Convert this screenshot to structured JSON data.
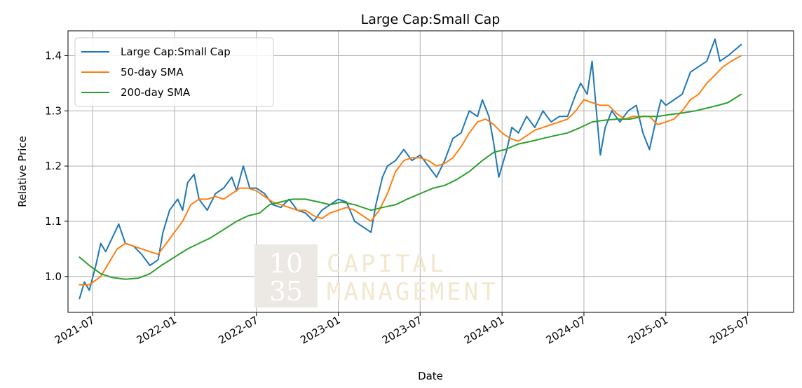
{
  "chart_data": {
    "type": "line",
    "title": "Large Cap:Small Cap",
    "xlabel": "Date",
    "ylabel": "Relative Price",
    "ylim": [
      0.935,
      1.445
    ],
    "xlim_years": [
      2021.35,
      2025.78
    ],
    "grid": true,
    "legend_position": "top-left",
    "x_ticks": [
      {
        "label": "2021-07",
        "value": 2021.5
      },
      {
        "label": "2022-01",
        "value": 2022.0
      },
      {
        "label": "2022-07",
        "value": 2022.5
      },
      {
        "label": "2023-01",
        "value": 2023.0
      },
      {
        "label": "2023-07",
        "value": 2023.5
      },
      {
        "label": "2024-01",
        "value": 2024.0
      },
      {
        "label": "2024-07",
        "value": 2024.5
      },
      {
        "label": "2025-01",
        "value": 2025.0
      },
      {
        "label": "2025-07",
        "value": 2025.5
      }
    ],
    "y_ticks": [
      {
        "label": "1.0",
        "value": 1.0
      },
      {
        "label": "1.1",
        "value": 1.1
      },
      {
        "label": "1.2",
        "value": 1.2
      },
      {
        "label": "1.3",
        "value": 1.3
      },
      {
        "label": "1.4",
        "value": 1.4
      }
    ],
    "series": [
      {
        "name": "Large Cap:Small Cap",
        "color": "#1f77b4",
        "points": [
          [
            2021.42,
            0.96
          ],
          [
            2021.45,
            0.99
          ],
          [
            2021.48,
            0.975
          ],
          [
            2021.52,
            1.02
          ],
          [
            2021.55,
            1.06
          ],
          [
            2021.58,
            1.045
          ],
          [
            2021.62,
            1.07
          ],
          [
            2021.66,
            1.095
          ],
          [
            2021.7,
            1.06
          ],
          [
            2021.75,
            1.055
          ],
          [
            2021.8,
            1.04
          ],
          [
            2021.85,
            1.02
          ],
          [
            2021.9,
            1.03
          ],
          [
            2021.93,
            1.08
          ],
          [
            2021.97,
            1.12
          ],
          [
            2022.02,
            1.14
          ],
          [
            2022.05,
            1.12
          ],
          [
            2022.08,
            1.17
          ],
          [
            2022.12,
            1.185
          ],
          [
            2022.15,
            1.14
          ],
          [
            2022.2,
            1.12
          ],
          [
            2022.25,
            1.15
          ],
          [
            2022.3,
            1.16
          ],
          [
            2022.35,
            1.18
          ],
          [
            2022.38,
            1.155
          ],
          [
            2022.42,
            1.2
          ],
          [
            2022.46,
            1.16
          ],
          [
            2022.5,
            1.16
          ],
          [
            2022.55,
            1.15
          ],
          [
            2022.6,
            1.13
          ],
          [
            2022.65,
            1.125
          ],
          [
            2022.7,
            1.14
          ],
          [
            2022.75,
            1.12
          ],
          [
            2022.8,
            1.115
          ],
          [
            2022.85,
            1.1
          ],
          [
            2022.9,
            1.12
          ],
          [
            2022.95,
            1.13
          ],
          [
            2023.0,
            1.14
          ],
          [
            2023.05,
            1.135
          ],
          [
            2023.1,
            1.1
          ],
          [
            2023.15,
            1.09
          ],
          [
            2023.2,
            1.08
          ],
          [
            2023.23,
            1.13
          ],
          [
            2023.27,
            1.18
          ],
          [
            2023.3,
            1.2
          ],
          [
            2023.35,
            1.21
          ],
          [
            2023.4,
            1.23
          ],
          [
            2023.45,
            1.21
          ],
          [
            2023.5,
            1.22
          ],
          [
            2023.55,
            1.2
          ],
          [
            2023.6,
            1.18
          ],
          [
            2023.65,
            1.21
          ],
          [
            2023.7,
            1.25
          ],
          [
            2023.75,
            1.26
          ],
          [
            2023.8,
            1.3
          ],
          [
            2023.85,
            1.29
          ],
          [
            2023.88,
            1.32
          ],
          [
            2023.92,
            1.29
          ],
          [
            2023.95,
            1.24
          ],
          [
            2023.98,
            1.18
          ],
          [
            2024.0,
            1.2
          ],
          [
            2024.03,
            1.23
          ],
          [
            2024.06,
            1.27
          ],
          [
            2024.1,
            1.26
          ],
          [
            2024.15,
            1.29
          ],
          [
            2024.2,
            1.27
          ],
          [
            2024.25,
            1.3
          ],
          [
            2024.3,
            1.28
          ],
          [
            2024.35,
            1.29
          ],
          [
            2024.4,
            1.29
          ],
          [
            2024.45,
            1.33
          ],
          [
            2024.48,
            1.35
          ],
          [
            2024.52,
            1.33
          ],
          [
            2024.55,
            1.39
          ],
          [
            2024.57,
            1.32
          ],
          [
            2024.6,
            1.22
          ],
          [
            2024.63,
            1.27
          ],
          [
            2024.67,
            1.3
          ],
          [
            2024.72,
            1.28
          ],
          [
            2024.77,
            1.3
          ],
          [
            2024.82,
            1.31
          ],
          [
            2024.86,
            1.26
          ],
          [
            2024.9,
            1.23
          ],
          [
            2024.93,
            1.27
          ],
          [
            2024.97,
            1.32
          ],
          [
            2025.0,
            1.31
          ],
          [
            2025.05,
            1.32
          ],
          [
            2025.1,
            1.33
          ],
          [
            2025.15,
            1.37
          ],
          [
            2025.2,
            1.38
          ],
          [
            2025.25,
            1.39
          ],
          [
            2025.3,
            1.43
          ],
          [
            2025.33,
            1.39
          ],
          [
            2025.38,
            1.4
          ],
          [
            2025.42,
            1.41
          ],
          [
            2025.46,
            1.42
          ]
        ]
      },
      {
        "name": "50-day SMA",
        "color": "#ff7f0e",
        "points": [
          [
            2021.42,
            0.985
          ],
          [
            2021.48,
            0.985
          ],
          [
            2021.55,
            1.0
          ],
          [
            2021.6,
            1.025
          ],
          [
            2021.65,
            1.05
          ],
          [
            2021.7,
            1.06
          ],
          [
            2021.75,
            1.055
          ],
          [
            2021.8,
            1.05
          ],
          [
            2021.85,
            1.045
          ],
          [
            2021.9,
            1.04
          ],
          [
            2021.95,
            1.06
          ],
          [
            2022.0,
            1.08
          ],
          [
            2022.05,
            1.1
          ],
          [
            2022.1,
            1.13
          ],
          [
            2022.15,
            1.14
          ],
          [
            2022.2,
            1.14
          ],
          [
            2022.25,
            1.145
          ],
          [
            2022.3,
            1.14
          ],
          [
            2022.35,
            1.15
          ],
          [
            2022.4,
            1.16
          ],
          [
            2022.45,
            1.16
          ],
          [
            2022.5,
            1.155
          ],
          [
            2022.55,
            1.145
          ],
          [
            2022.6,
            1.135
          ],
          [
            2022.65,
            1.13
          ],
          [
            2022.7,
            1.125
          ],
          [
            2022.75,
            1.12
          ],
          [
            2022.8,
            1.12
          ],
          [
            2022.85,
            1.11
          ],
          [
            2022.9,
            1.105
          ],
          [
            2022.95,
            1.115
          ],
          [
            2023.0,
            1.12
          ],
          [
            2023.05,
            1.125
          ],
          [
            2023.1,
            1.12
          ],
          [
            2023.15,
            1.11
          ],
          [
            2023.2,
            1.1
          ],
          [
            2023.25,
            1.12
          ],
          [
            2023.3,
            1.15
          ],
          [
            2023.35,
            1.19
          ],
          [
            2023.4,
            1.21
          ],
          [
            2023.45,
            1.215
          ],
          [
            2023.5,
            1.215
          ],
          [
            2023.55,
            1.21
          ],
          [
            2023.6,
            1.2
          ],
          [
            2023.65,
            1.205
          ],
          [
            2023.7,
            1.215
          ],
          [
            2023.75,
            1.235
          ],
          [
            2023.8,
            1.26
          ],
          [
            2023.85,
            1.28
          ],
          [
            2023.9,
            1.285
          ],
          [
            2023.95,
            1.275
          ],
          [
            2024.0,
            1.26
          ],
          [
            2024.05,
            1.25
          ],
          [
            2024.1,
            1.245
          ],
          [
            2024.15,
            1.255
          ],
          [
            2024.2,
            1.265
          ],
          [
            2024.25,
            1.27
          ],
          [
            2024.3,
            1.275
          ],
          [
            2024.35,
            1.28
          ],
          [
            2024.4,
            1.285
          ],
          [
            2024.45,
            1.3
          ],
          [
            2024.5,
            1.32
          ],
          [
            2024.55,
            1.315
          ],
          [
            2024.6,
            1.31
          ],
          [
            2024.65,
            1.31
          ],
          [
            2024.7,
            1.295
          ],
          [
            2024.75,
            1.285
          ],
          [
            2024.8,
            1.29
          ],
          [
            2024.85,
            1.29
          ],
          [
            2024.9,
            1.29
          ],
          [
            2024.95,
            1.275
          ],
          [
            2025.0,
            1.28
          ],
          [
            2025.05,
            1.285
          ],
          [
            2025.1,
            1.3
          ],
          [
            2025.15,
            1.32
          ],
          [
            2025.2,
            1.33
          ],
          [
            2025.25,
            1.35
          ],
          [
            2025.3,
            1.365
          ],
          [
            2025.35,
            1.38
          ],
          [
            2025.4,
            1.39
          ],
          [
            2025.46,
            1.4
          ]
        ]
      },
      {
        "name": "200-day SMA",
        "color": "#2ca02c",
        "points": [
          [
            2021.42,
            1.035
          ],
          [
            2021.48,
            1.02
          ],
          [
            2021.55,
            1.005
          ],
          [
            2021.62,
            0.998
          ],
          [
            2021.7,
            0.995
          ],
          [
            2021.78,
            0.997
          ],
          [
            2021.85,
            1.005
          ],
          [
            2021.92,
            1.02
          ],
          [
            2022.0,
            1.035
          ],
          [
            2022.08,
            1.05
          ],
          [
            2022.15,
            1.06
          ],
          [
            2022.22,
            1.07
          ],
          [
            2022.3,
            1.085
          ],
          [
            2022.38,
            1.1
          ],
          [
            2022.45,
            1.11
          ],
          [
            2022.52,
            1.115
          ],
          [
            2022.58,
            1.13
          ],
          [
            2022.65,
            1.135
          ],
          [
            2022.72,
            1.14
          ],
          [
            2022.8,
            1.14
          ],
          [
            2022.88,
            1.135
          ],
          [
            2022.95,
            1.13
          ],
          [
            2023.02,
            1.135
          ],
          [
            2023.1,
            1.13
          ],
          [
            2023.15,
            1.125
          ],
          [
            2023.2,
            1.12
          ],
          [
            2023.27,
            1.125
          ],
          [
            2023.35,
            1.13
          ],
          [
            2023.42,
            1.14
          ],
          [
            2023.5,
            1.15
          ],
          [
            2023.58,
            1.16
          ],
          [
            2023.65,
            1.165
          ],
          [
            2023.72,
            1.175
          ],
          [
            2023.8,
            1.19
          ],
          [
            2023.88,
            1.21
          ],
          [
            2023.95,
            1.225
          ],
          [
            2024.02,
            1.23
          ],
          [
            2024.1,
            1.24
          ],
          [
            2024.18,
            1.245
          ],
          [
            2024.25,
            1.25
          ],
          [
            2024.32,
            1.255
          ],
          [
            2024.4,
            1.26
          ],
          [
            2024.48,
            1.27
          ],
          [
            2024.55,
            1.28
          ],
          [
            2024.62,
            1.283
          ],
          [
            2024.7,
            1.285
          ],
          [
            2024.78,
            1.285
          ],
          [
            2024.86,
            1.29
          ],
          [
            2024.95,
            1.29
          ],
          [
            2025.02,
            1.293
          ],
          [
            2025.1,
            1.296
          ],
          [
            2025.18,
            1.3
          ],
          [
            2025.25,
            1.305
          ],
          [
            2025.32,
            1.31
          ],
          [
            2025.38,
            1.315
          ],
          [
            2025.46,
            1.33
          ]
        ]
      }
    ],
    "watermark": {
      "box_line_1": "10",
      "box_line_2": "35",
      "line_1": "CAPITAL",
      "line_2": "MANAGEMENT"
    }
  }
}
